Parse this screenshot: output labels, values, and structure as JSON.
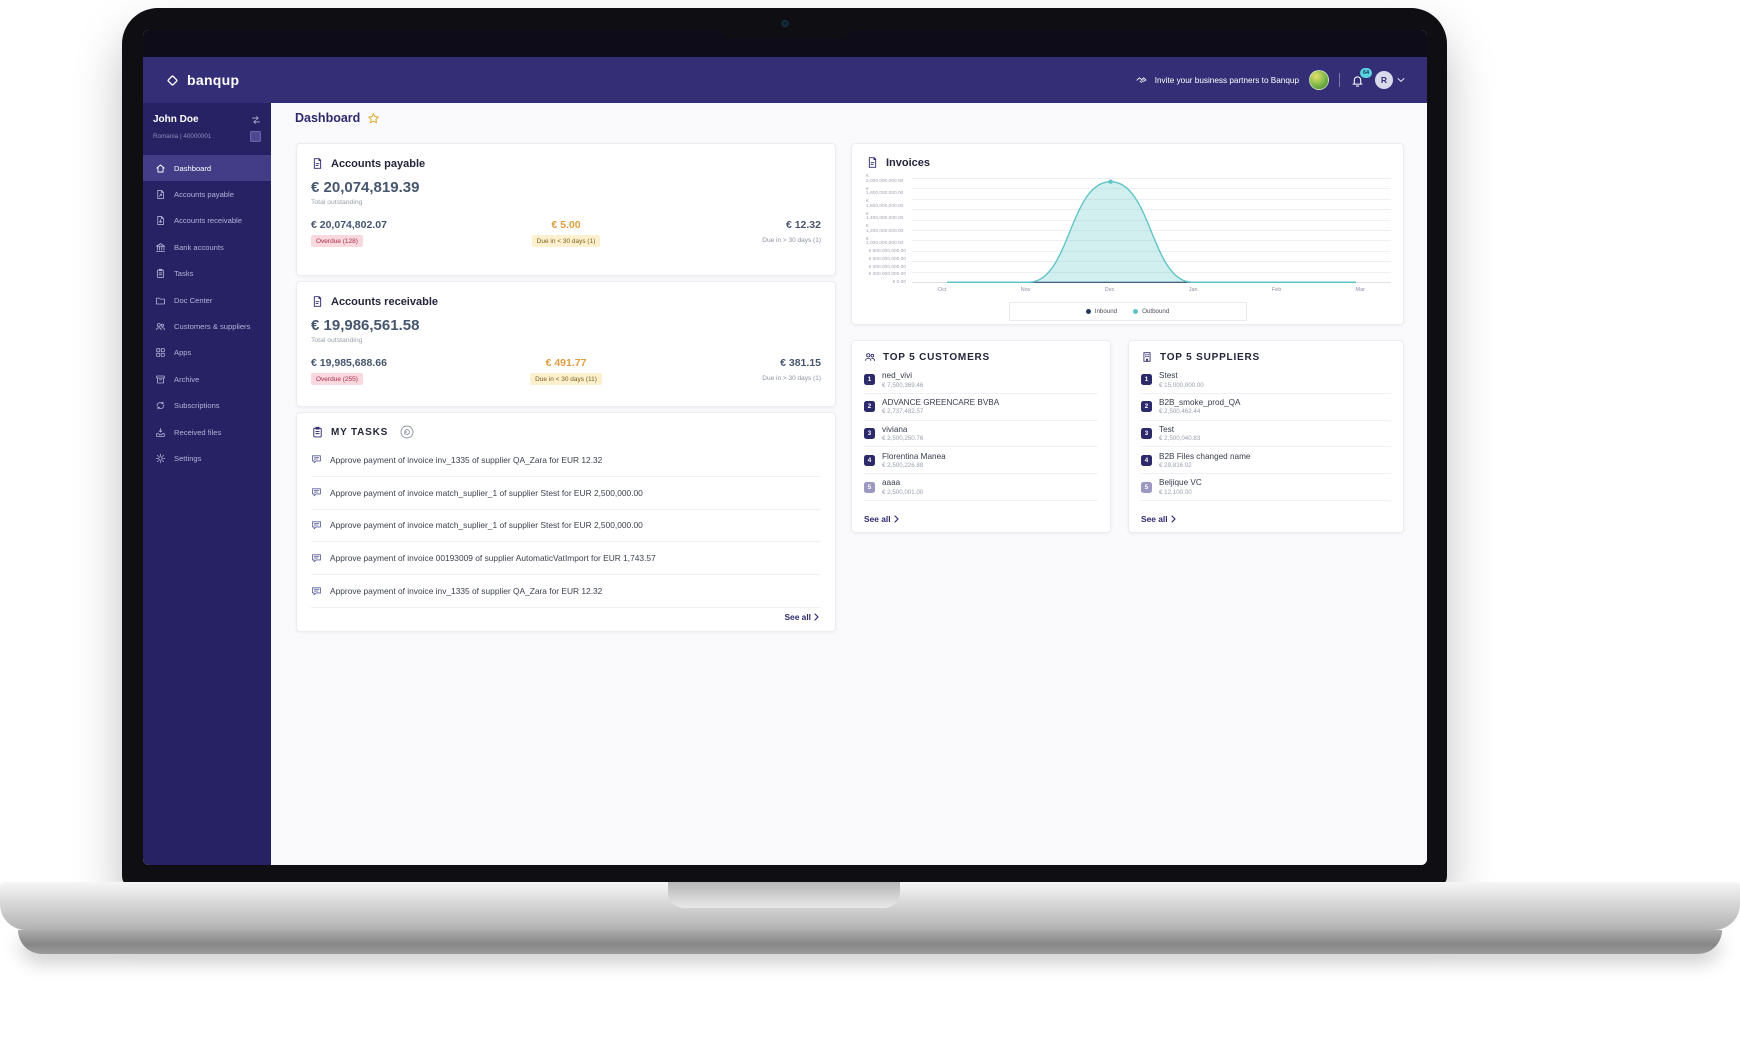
{
  "theme": {
    "topbar_bg": "#332e76",
    "sidebar_bg": "#272263",
    "sidebar_active_bg": "#433d88",
    "accent": "#2d296d",
    "amount_color": "#46566f",
    "orange": "#dd9d3e",
    "overdue_bg": "#f9d9de",
    "overdue_text": "#a72b4a",
    "due_bg": "#fcf0cf",
    "due_text": "#7c611c",
    "star": "#d9a51c"
  },
  "topbar": {
    "logo_text": "banqup",
    "invite_label": "Invite your business partners to Banqup",
    "notification_badge": "64",
    "user_initial": "R"
  },
  "sidebar": {
    "user_name": "John Doe",
    "account_meta": "Romania  |  40000001",
    "items": [
      {
        "label": "Dashboard"
      },
      {
        "label": "Accounts payable"
      },
      {
        "label": "Accounts receivable"
      },
      {
        "label": "Bank accounts"
      },
      {
        "label": "Tasks"
      },
      {
        "label": "Doc Center"
      },
      {
        "label": "Customers & suppliers"
      },
      {
        "label": "Apps"
      },
      {
        "label": "Archive"
      },
      {
        "label": "Subscriptions"
      },
      {
        "label": "Received files"
      },
      {
        "label": "Settings"
      }
    ]
  },
  "page": {
    "title": "Dashboard"
  },
  "accounts_payable": {
    "title": "Accounts payable",
    "total_amount": "€ 20,074,819.39",
    "total_label": "Total outstanding",
    "overdue_amount": "€ 20,074,802.07",
    "overdue_badge": "Overdue (128)",
    "due_soon_amount": "€ 5.00",
    "due_soon_badge": "Due in < 30 days (1)",
    "due_later_amount": "€ 12.32",
    "due_later_label": "Due in > 30 days (1)"
  },
  "accounts_receivable": {
    "title": "Accounts receivable",
    "total_amount": "€ 19,986,561.58",
    "total_label": "Total outstanding",
    "overdue_amount": "€ 19,985,688.66",
    "overdue_badge": "Overdue (255)",
    "due_soon_amount": "€ 491.77",
    "due_soon_badge": "Due in < 30 days (11)",
    "due_later_amount": "€ 381.15",
    "due_later_label": "Due in > 30 days (1)"
  },
  "my_tasks": {
    "title": "MY TASKS",
    "see_all_label": "See all",
    "tasks": [
      {
        "text": "Approve payment of invoice inv_1335 of supplier QA_Zara for EUR 12.32"
      },
      {
        "text": "Approve payment of invoice match_suplier_1 of supplier Stest for EUR 2,500,000.00"
      },
      {
        "text": "Approve payment of invoice match_suplier_1 of supplier Stest for EUR 2,500,000.00"
      },
      {
        "text": "Approve payment of invoice 00193009 of supplier AutomaticVatImport for EUR 1,743.57"
      },
      {
        "text": "Approve payment of invoice inv_1335 of supplier QA_Zara for EUR 12.32"
      }
    ]
  },
  "invoices_card": {
    "title": "Invoices"
  },
  "chart_data": {
    "type": "area",
    "title": "Invoices",
    "x": [
      "Oct",
      "Nov",
      "Dec",
      "Jan",
      "Feb",
      "Mar"
    ],
    "series": [
      {
        "name": "Inbound",
        "color": "#233a63",
        "values": [
          0,
          0,
          0,
          0,
          0,
          0
        ]
      },
      {
        "name": "Outbound",
        "color": "#5fc4c6",
        "values": [
          0,
          0,
          1930000000,
          0,
          0,
          0
        ]
      }
    ],
    "ylim": [
      0,
      2000000000
    ],
    "ytick_labels": [
      "€ 2,000,000,000.00",
      "€ 1,800,000,000.00",
      "€ 1,600,000,000.00",
      "€ 1,400,000,000.00",
      "€ 1,200,000,000.00",
      "€ 1,000,000,000.00",
      "€ 800,000,000.00",
      "€ 600,000,000.00",
      "€ 400,000,000.00",
      "€ 200,000,000.00",
      "€ 0.00"
    ],
    "grid": true,
    "legend_position": "bottom"
  },
  "top_customers": {
    "title": "TOP 5 CUSTOMERS",
    "see_all_label": "See all",
    "rows": [
      {
        "rank": "1",
        "name": "ned_vivi",
        "amount": "€ 7,500,369.46"
      },
      {
        "rank": "2",
        "name": "ADVANCE GREENCARE BVBA",
        "amount": "€ 2,737,482.57"
      },
      {
        "rank": "3",
        "name": "viviana",
        "amount": "€ 2,500,250.76"
      },
      {
        "rank": "4",
        "name": "Florentina Manea",
        "amount": "€ 2,500,226.88"
      },
      {
        "rank": "5",
        "name": "aaaa",
        "amount": "€ 2,500,001.00"
      }
    ]
  },
  "top_suppliers": {
    "title": "TOP 5 SUPPLIERS",
    "see_all_label": "See all",
    "rows": [
      {
        "rank": "1",
        "name": "Stest",
        "amount": "€ 15,000,000.00"
      },
      {
        "rank": "2",
        "name": "B2B_smoke_prod_QA",
        "amount": "€ 2,500,462.44"
      },
      {
        "rank": "3",
        "name": "Test",
        "amount": "€ 2,500,040.83"
      },
      {
        "rank": "4",
        "name": "B2B Files changed name",
        "amount": "€ 29,816.02"
      },
      {
        "rank": "5",
        "name": "Beljique VC",
        "amount": "€ 12,100.00"
      }
    ]
  }
}
